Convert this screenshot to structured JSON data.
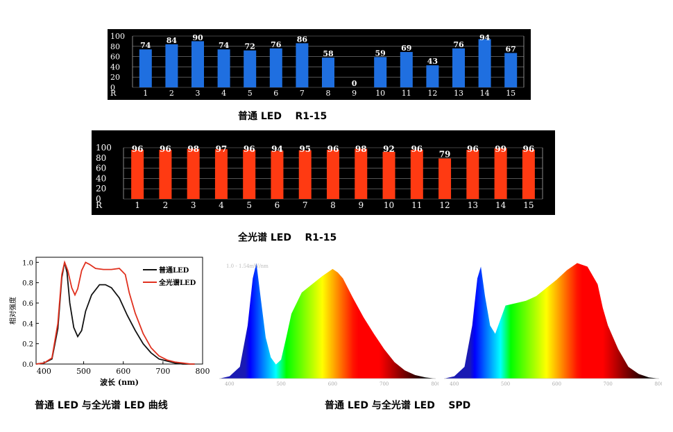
{
  "captions": {
    "cri_normal": "普通 LED    R1-15",
    "cri_full": "全光谱 LED    R1-15",
    "curve": "普通 LED 与全光谱 LED 曲线",
    "spd": "普通 LED 与全光谱 LED    SPD"
  },
  "colors": {
    "bar_normal": "#1f6fe0",
    "bar_full": "#ff3a12",
    "line_normal": "#111111",
    "line_full": "#e0301e",
    "panel_bg": "#000000"
  },
  "chart_data": [
    {
      "type": "bar",
      "categories": [
        "1",
        "2",
        "3",
        "4",
        "5",
        "6",
        "7",
        "8",
        "9",
        "10",
        "11",
        "12",
        "13",
        "14",
        "15"
      ],
      "values": [
        74,
        84,
        90,
        74,
        72,
        76,
        86,
        58,
        0,
        59,
        69,
        43,
        76,
        94,
        67
      ],
      "value_labels": [
        "74",
        "84",
        "90",
        "74",
        "72",
        "76",
        "86",
        "58",
        "0",
        "59",
        "69",
        "43",
        "76",
        "94",
        "67"
      ],
      "yticks": [
        "100",
        "80",
        "60",
        "40",
        "20",
        "0"
      ],
      "xlabel": "R",
      "ylim": [
        0,
        100
      ],
      "grid": true
    },
    {
      "type": "bar",
      "categories": [
        "1",
        "2",
        "3",
        "4",
        "5",
        "6",
        "7",
        "8",
        "9",
        "10",
        "11",
        "12",
        "13",
        "14",
        "15"
      ],
      "values": [
        96,
        96,
        98,
        97,
        96,
        94,
        95,
        96,
        98,
        92,
        96,
        79,
        96,
        99,
        96
      ],
      "value_labels": [
        "96",
        "96",
        "98",
        "97",
        "96",
        "94",
        "95",
        "96",
        "98",
        "92",
        "96",
        "79",
        "96",
        "99",
        "96"
      ],
      "yticks": [
        "100",
        "80",
        "60",
        "40",
        "20",
        "0"
      ],
      "xlabel": "R",
      "ylim": [
        0,
        100
      ],
      "grid": true
    },
    {
      "type": "line",
      "xlabel": "波长 (nm)",
      "ylabel": "相对强度",
      "xlim": [
        380,
        800
      ],
      "ylim": [
        0,
        1.05
      ],
      "xticks": [
        "400",
        "500",
        "600",
        "700",
        "800"
      ],
      "yticks": [
        "0.0",
        "0.2",
        "0.4",
        "0.6",
        "0.8",
        "1.0"
      ],
      "legend_position": "top-right",
      "series": [
        {
          "name": "普通LED",
          "x": [
            380,
            400,
            420,
            435,
            445,
            452,
            458,
            465,
            475,
            485,
            495,
            505,
            520,
            540,
            555,
            570,
            590,
            610,
            630,
            650,
            670,
            690,
            710,
            730,
            750,
            770,
            780
          ],
          "y": [
            0.0,
            0.01,
            0.05,
            0.35,
            0.85,
            1.0,
            0.9,
            0.6,
            0.36,
            0.27,
            0.33,
            0.52,
            0.68,
            0.78,
            0.78,
            0.75,
            0.65,
            0.48,
            0.33,
            0.2,
            0.11,
            0.05,
            0.03,
            0.01,
            0.0,
            0.0,
            0.0
          ]
        },
        {
          "name": "全光谱LED",
          "x": [
            380,
            400,
            420,
            435,
            445,
            452,
            460,
            470,
            478,
            485,
            495,
            505,
            515,
            530,
            550,
            570,
            590,
            605,
            615,
            630,
            650,
            670,
            690,
            710,
            730,
            750,
            770,
            780
          ],
          "y": [
            0.0,
            0.01,
            0.06,
            0.4,
            0.88,
            1.0,
            0.92,
            0.75,
            0.68,
            0.74,
            0.92,
            1.0,
            0.98,
            0.94,
            0.93,
            0.93,
            0.94,
            0.88,
            0.7,
            0.5,
            0.3,
            0.16,
            0.08,
            0.04,
            0.02,
            0.01,
            0.0,
            0.0
          ]
        }
      ]
    },
    {
      "type": "area",
      "title_small": "1.0 - 1.54mW/nm",
      "xticks": [
        "400",
        "500",
        "600",
        "700",
        "800"
      ],
      "xlim": [
        380,
        800
      ],
      "ylim": [
        0,
        1
      ],
      "x": [
        380,
        400,
        420,
        435,
        445,
        452,
        460,
        470,
        480,
        490,
        500,
        510,
        520,
        540,
        560,
        580,
        600,
        610,
        620,
        640,
        660,
        680,
        700,
        720,
        740,
        760,
        780,
        800
      ],
      "y": [
        0.0,
        0.02,
        0.1,
        0.45,
        0.85,
        0.98,
        0.7,
        0.35,
        0.18,
        0.12,
        0.16,
        0.35,
        0.55,
        0.73,
        0.8,
        0.87,
        0.93,
        0.9,
        0.85,
        0.68,
        0.52,
        0.38,
        0.25,
        0.14,
        0.07,
        0.03,
        0.01,
        0.0
      ]
    },
    {
      "type": "area",
      "xticks": [
        "400",
        "500",
        "600",
        "700",
        "800"
      ],
      "xlim": [
        380,
        800
      ],
      "ylim": [
        0,
        1
      ],
      "x": [
        380,
        400,
        420,
        435,
        445,
        452,
        460,
        470,
        480,
        490,
        500,
        520,
        540,
        560,
        580,
        600,
        620,
        640,
        660,
        680,
        690,
        700,
        720,
        740,
        760,
        780,
        800
      ],
      "y": [
        0.0,
        0.02,
        0.1,
        0.45,
        0.85,
        0.95,
        0.7,
        0.45,
        0.38,
        0.5,
        0.62,
        0.64,
        0.66,
        0.7,
        0.77,
        0.84,
        0.92,
        0.98,
        0.95,
        0.8,
        0.6,
        0.45,
        0.25,
        0.1,
        0.04,
        0.01,
        0.0
      ]
    }
  ]
}
